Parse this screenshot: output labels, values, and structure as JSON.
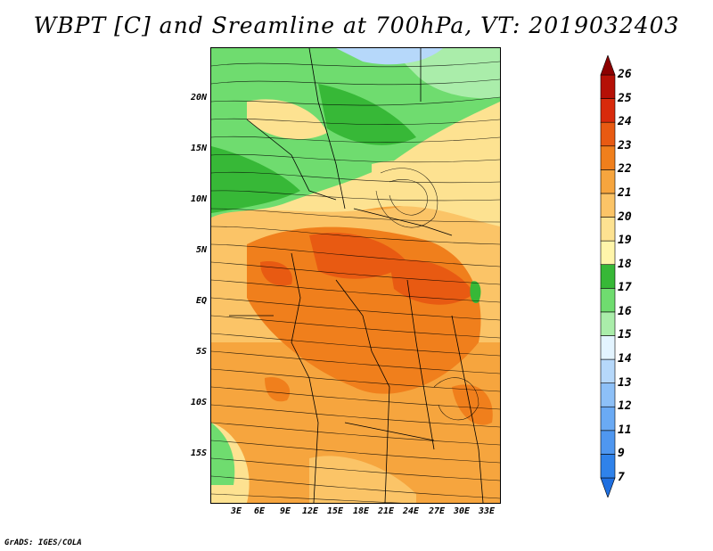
{
  "title": "WBPT [C] and Sreamline at 700hPa, VT: 2019032403",
  "lat_labels": [
    "20N",
    "15N",
    "10N",
    "5N",
    "EQ",
    "5S",
    "10S",
    "15S"
  ],
  "lon_labels": [
    "3E",
    "6E",
    "9E",
    "12E",
    "15E",
    "18E",
    "21E",
    "24E",
    "27E",
    "30E",
    "33E"
  ],
  "colorbar": {
    "labels": [
      "7",
      "9",
      "11",
      "12",
      "13",
      "14",
      "15",
      "16",
      "17",
      "18",
      "19",
      "20",
      "21",
      "22",
      "23",
      "24",
      "25",
      "26"
    ],
    "colors": [
      "#1f6fe0",
      "#2f82ea",
      "#4f97f0",
      "#6aaaf4",
      "#8dc0f7",
      "#b6d8fa",
      "#e3f4ff",
      "#aaedaa",
      "#6fdc6f",
      "#37b837",
      "#fff5aa",
      "#fde291",
      "#fbc467",
      "#f6a53e",
      "#f07f1c",
      "#e85a12",
      "#d82a0c",
      "#b51006",
      "#8c0000"
    ]
  },
  "footer": "GrADS: IGES/COLA"
}
